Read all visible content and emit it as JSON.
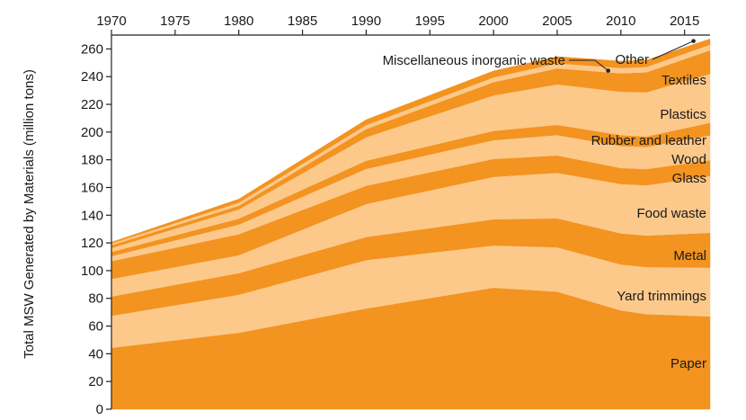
{
  "chart_data": {
    "type": "area",
    "stacked": true,
    "title": "",
    "xlabel": "",
    "ylabel": "Total MSW Generated by Materials (million tons)",
    "xlim": [
      1970,
      2017
    ],
    "ylim": [
      0,
      270
    ],
    "x_ticks": [
      1970,
      1975,
      1980,
      1985,
      1990,
      1995,
      2000,
      2005,
      2010,
      2015
    ],
    "y_ticks": [
      0,
      20,
      40,
      60,
      80,
      100,
      120,
      140,
      160,
      180,
      200,
      220,
      240,
      260
    ],
    "x_axis_position": "top",
    "grid": false,
    "legend": "inline labels at right",
    "x": [
      1970,
      1980,
      1990,
      2000,
      2005,
      2010,
      2012,
      2017
    ],
    "colors": {
      "dark": "#f39320",
      "light": "#fcc98b"
    },
    "series": [
      {
        "name": "Paper",
        "values": [
          44.3,
          55.2,
          72.7,
          87.7,
          84.8,
          71.3,
          68.6,
          67.0
        ],
        "color": "#f39320"
      },
      {
        "name": "Yard trimmings",
        "values": [
          23.2,
          27.5,
          35.0,
          30.5,
          32.1,
          33.2,
          34.0,
          35.2
        ],
        "color": "#fcc98b"
      },
      {
        "name": "Metal",
        "values": [
          13.8,
          15.5,
          16.6,
          18.9,
          20.8,
          22.4,
          22.7,
          25.1
        ],
        "color": "#f39320"
      },
      {
        "name": "Food waste",
        "values": [
          12.8,
          13.0,
          23.9,
          30.7,
          32.9,
          35.7,
          36.4,
          41.0
        ],
        "color": "#fcc98b"
      },
      {
        "name": "Glass",
        "values": [
          12.7,
          15.1,
          13.1,
          12.8,
          12.5,
          11.5,
          11.6,
          11.4
        ],
        "color": "#f39320"
      },
      {
        "name": "Wood",
        "values": [
          3.7,
          7.0,
          12.2,
          13.6,
          14.8,
          15.9,
          16.0,
          18.0
        ],
        "color": "#fcc98b"
      },
      {
        "name": "Rubber and leather",
        "values": [
          3.0,
          4.2,
          5.8,
          6.7,
          7.3,
          7.8,
          7.5,
          9.0
        ],
        "color": "#f39320"
      },
      {
        "name": "Plastics",
        "values": [
          2.9,
          6.8,
          17.1,
          25.6,
          29.3,
          31.4,
          32.0,
          35.4
        ],
        "color": "#fcc98b"
      },
      {
        "name": "Textiles",
        "values": [
          2.0,
          2.5,
          5.8,
          9.5,
          11.5,
          13.2,
          14.3,
          16.9
        ],
        "color": "#f39320"
      },
      {
        "name": "Miscellaneous inorganic waste",
        "values": [
          1.3,
          2.3,
          2.9,
          3.5,
          3.7,
          3.9,
          3.9,
          4.1
        ],
        "color": "#fcc98b"
      },
      {
        "name": "Other",
        "values": [
          0.8,
          2.5,
          3.8,
          4.6,
          4.8,
          4.9,
          4.9,
          4.1
        ],
        "color": "#f39320"
      }
    ]
  }
}
